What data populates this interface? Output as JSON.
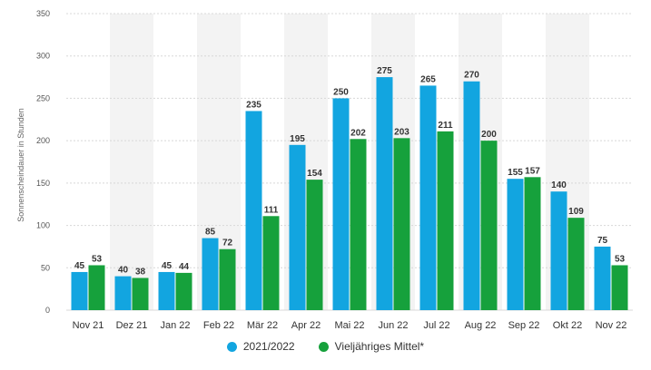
{
  "chart_data": {
    "type": "bar",
    "ylabel": "Sonnenscheindauer in Stunden",
    "ylim": [
      0,
      350
    ],
    "yticks": [
      0,
      50,
      100,
      150,
      200,
      250,
      300,
      350
    ],
    "grid": true,
    "legend_position": "bottom-center",
    "categories": [
      "Nov 21",
      "Dez 21",
      "Jan 22",
      "Feb 22",
      "Mär 22",
      "Apr 22",
      "Mai 22",
      "Jun 22",
      "Jul 22",
      "Aug 22",
      "Sep 22",
      "Okt 22",
      "Nov 22"
    ],
    "series": [
      {
        "name": "2021/2022",
        "color": "#12a5e0",
        "values": [
          45,
          40,
          45,
          85,
          235,
          195,
          250,
          275,
          265,
          270,
          155,
          140,
          75
        ]
      },
      {
        "name": "Vieljähriges Mittel*",
        "color": "#16a13c",
        "values": [
          53,
          38,
          44,
          72,
          111,
          154,
          202,
          203,
          211,
          200,
          157,
          109,
          53
        ]
      }
    ]
  },
  "colors": {
    "alt_band": "#f3f3f3",
    "grid": "#d8d8d8",
    "label": "#333333",
    "tick": "#555555"
  }
}
